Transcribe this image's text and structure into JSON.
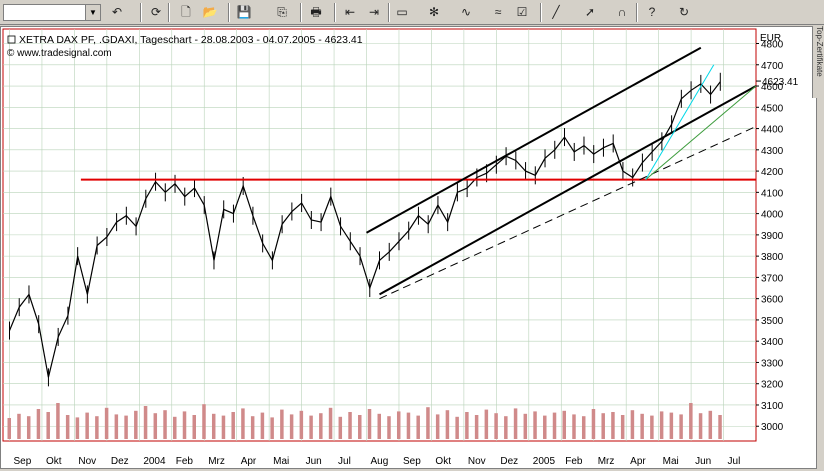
{
  "toolbar": {
    "combo_value": "",
    "buttons": [
      {
        "name": "undo-icon",
        "glyph": "↶"
      },
      {
        "name": "refresh-icon",
        "glyph": "⟳"
      },
      {
        "name": "new-document-icon",
        "glyph": "🗋"
      },
      {
        "name": "open-folder-icon",
        "glyph": "📂"
      },
      {
        "name": "save-icon",
        "glyph": "💾"
      },
      {
        "name": "copy-icon",
        "glyph": "⎘"
      },
      {
        "name": "print-icon",
        "glyph": "🖶"
      },
      {
        "name": "back-icon",
        "glyph": "⇤"
      },
      {
        "name": "forward-icon",
        "glyph": "⇥"
      },
      {
        "name": "chart-window-icon",
        "glyph": "▭"
      },
      {
        "name": "indicator-icon",
        "glyph": "✻"
      },
      {
        "name": "line-chart-icon",
        "glyph": "∿"
      },
      {
        "name": "oscillator-icon",
        "glyph": "≈"
      },
      {
        "name": "properties-icon",
        "glyph": "☑"
      },
      {
        "name": "draw-line-icon",
        "glyph": "╱"
      },
      {
        "name": "cursor-icon",
        "glyph": "➚"
      },
      {
        "name": "magnet-icon",
        "glyph": "∩"
      },
      {
        "name": "help-icon",
        "glyph": "?"
      },
      {
        "name": "reload-icon",
        "glyph": "↻"
      }
    ]
  },
  "side_tab_label": "Top-Zertifikate",
  "chart": {
    "title": "XETRA DAX PF, .GDAXI, Tageschart - 28.08.2003 - 04.07.2005 - 4623.41",
    "copyright": "© www.tradesignal.com",
    "currency": "EUR",
    "last_price": "4623.41",
    "colors": {
      "support_line": "#e00000",
      "trend_channel": "#000000",
      "fan_cyan": "#00d8e8",
      "fan_green": "#3c9c3c",
      "volume": "#d08a8a",
      "grid": "#b9d3b9"
    }
  },
  "chart_data": {
    "type": "line",
    "title": "XETRA DAX PF, .GDAXI, Tageschart - 28.08.2003 - 04.07.2005 - 4623.41",
    "ylabel": "EUR",
    "ylim": [
      2940,
      4840
    ],
    "y_ticks": [
      "4800",
      "4700",
      "4600",
      "4500",
      "4400",
      "4300",
      "4200",
      "4100",
      "4000",
      "3900",
      "3800",
      "3700",
      "3600",
      "3500",
      "3400",
      "3300",
      "3200",
      "3100",
      "3000"
    ],
    "x_ticks": [
      "Sep",
      "Okt",
      "Nov",
      "Dez",
      "2004",
      "Feb",
      "Mrz",
      "Apr",
      "Mai",
      "Jun",
      "Jul",
      "Aug",
      "Sep",
      "Okt",
      "Nov",
      "Dez",
      "2005",
      "Feb",
      "Mrz",
      "Apr",
      "Mai",
      "Jun",
      "Jul"
    ],
    "x_tick_months": [
      0,
      1,
      2,
      3,
      4,
      5,
      6,
      7,
      8,
      9,
      10,
      11,
      12,
      13,
      14,
      15,
      16,
      17,
      18,
      19,
      20,
      21,
      22
    ],
    "series": [
      {
        "name": "",
        "month": [
          0.0,
          0.3,
          0.6,
          0.9,
          1.2,
          1.5,
          1.8,
          2.1,
          2.4,
          2.7,
          3.0,
          3.3,
          3.6,
          3.9,
          4.2,
          4.5,
          4.8,
          5.1,
          5.4,
          5.7,
          6.0,
          6.3,
          6.6,
          6.9,
          7.2,
          7.5,
          7.8,
          8.1,
          8.4,
          8.7,
          9.0,
          9.3,
          9.6,
          9.9,
          10.2,
          10.5,
          10.8,
          11.1,
          11.4,
          11.7,
          12.0,
          12.3,
          12.6,
          12.9,
          13.2,
          13.5,
          13.8,
          14.1,
          14.4,
          14.7,
          15.0,
          15.3,
          15.6,
          15.9,
          16.2,
          16.5,
          16.8,
          17.1,
          17.4,
          17.7,
          18.0,
          18.3,
          18.6,
          18.9,
          19.2,
          19.5,
          19.8,
          20.1,
          20.4,
          20.7,
          21.0,
          21.3,
          21.6,
          21.9
        ],
        "value": [
          3450,
          3560,
          3620,
          3480,
          3230,
          3420,
          3520,
          3800,
          3620,
          3850,
          3890,
          3960,
          3990,
          3940,
          4070,
          4150,
          4100,
          4140,
          4080,
          4120,
          4040,
          3780,
          4020,
          4000,
          4130,
          3990,
          3860,
          3780,
          3950,
          4010,
          4050,
          3970,
          3960,
          4080,
          3940,
          3870,
          3800,
          3650,
          3780,
          3820,
          3870,
          3920,
          3990,
          3950,
          4040,
          3960,
          4100,
          4120,
          4170,
          4190,
          4230,
          4270,
          4250,
          4200,
          4180,
          4260,
          4300,
          4360,
          4290,
          4320,
          4280,
          4310,
          4330,
          4200,
          4170,
          4240,
          4290,
          4340,
          4420,
          4540,
          4580,
          4610,
          4560,
          4620
        ]
      }
    ],
    "volume_ylim": [
      0,
      100
    ],
    "volume": [
      35,
      42,
      38,
      50,
      45,
      60,
      40,
      36,
      44,
      38,
      52,
      41,
      39,
      47,
      55,
      43,
      48,
      37,
      46,
      40,
      58,
      42,
      39,
      45,
      51,
      38,
      44,
      36,
      49,
      41,
      47,
      39,
      43,
      52,
      37,
      45,
      40,
      50,
      42,
      38,
      46,
      44,
      39,
      53,
      41,
      48,
      37,
      45,
      40,
      49,
      43,
      38,
      51,
      42,
      46,
      39,
      44,
      47,
      41,
      38,
      50,
      43,
      45,
      40,
      48,
      42,
      39,
      46,
      44,
      41,
      60,
      43,
      47,
      40
    ]
  }
}
